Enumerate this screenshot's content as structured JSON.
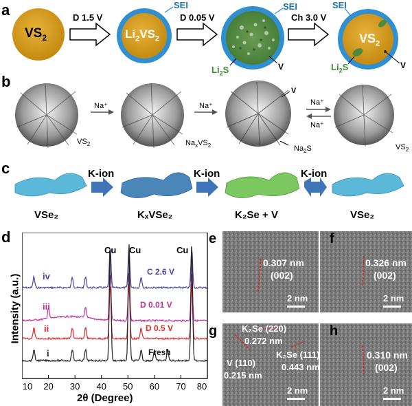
{
  "panel_a": {
    "label": "a",
    "circle1": {
      "main": "VS",
      "sub": "2"
    },
    "arrow1": "D 1.5 V",
    "circle2": {
      "pre": "Li",
      "s1": "2",
      "mid": "VS",
      "s2": "2"
    },
    "sei1": "SEI",
    "arrow2": "D 0.05 V",
    "sei2": "SEI",
    "li2s_1": {
      "main": "Li",
      "sub": "2",
      "post": "S"
    },
    "v1": "V",
    "arrow3": "Ch 3.0 V",
    "sei3": "SEI",
    "circle4": {
      "main": "VS",
      "sub": "2"
    },
    "li2s_2": {
      "main": "Li",
      "sub": "2",
      "post": "S"
    },
    "v2": "V"
  },
  "panel_b": {
    "label": "b",
    "na1": "Na⁺",
    "vs2_1": {
      "main": "VS",
      "sub": "2"
    },
    "na2": "Na⁺",
    "naxvs2": {
      "pre": "Na",
      "s1": "x",
      "mid": "VS",
      "s2": "2"
    },
    "v": "V",
    "na2s": {
      "main": "Na",
      "sub": "2",
      "post": "S"
    },
    "na3": "Na⁺",
    "na4": "Na⁺",
    "vs2_2": {
      "main": "VS",
      "sub": "2"
    }
  },
  "panel_c": {
    "label": "c",
    "arrow1": "K-ion",
    "arrow2": "K-ion",
    "arrow3": "K-ion",
    "l1": "VSe₂",
    "l2": "KₓVSe₂",
    "l3": "K₂Se + V",
    "l4": "VSe₂",
    "colors": {
      "vse2": "#5cb8d8",
      "kxvse2": "#4a86b8",
      "k2se": "#7cc860",
      "arrow": "#3f75b8"
    }
  },
  "panel_d": {
    "label": "d",
    "ylabel": "Intensity (a.u.)",
    "xlabel": "2θ (Degree)",
    "cu_labels": [
      "Cu",
      "Cu",
      "Cu"
    ],
    "roman": [
      "iv",
      "iii",
      "ii",
      "i"
    ],
    "series_labels": [
      "C 2.6 V",
      "D 0.01 V",
      "D 0.5 V",
      "Fresh"
    ],
    "series_colors": [
      "#44469c",
      "#c0309c",
      "#e02828",
      "#222222"
    ]
  },
  "chart_data": {
    "type": "line",
    "xlabel": "2θ (Degree)",
    "ylabel": "Intensity (a.u.)",
    "xlim": [
      10,
      80
    ],
    "xticks": [
      10,
      20,
      30,
      40,
      50,
      60,
      70,
      80
    ],
    "cu_peaks": [
      43.3,
      50.4,
      74.1
    ],
    "series": [
      {
        "name": "C 2.6 V",
        "peaks": [
          14.5,
          29,
          34,
          43.3,
          50.4,
          55,
          74.1
        ]
      },
      {
        "name": "D 0.01 V",
        "peaks": [
          20,
          34,
          43.3,
          50.4,
          74.1
        ]
      },
      {
        "name": "D 0.5 V",
        "peaks": [
          14.5,
          29,
          34,
          43.3,
          50.4,
          55,
          74.1
        ]
      },
      {
        "name": "Fresh",
        "peaks": [
          14.5,
          29,
          34,
          43.3,
          50.4,
          55,
          60,
          65,
          74.1
        ]
      }
    ]
  },
  "panel_e": {
    "label": "e",
    "spacing": "0.307 nm",
    "plane": "(002)",
    "scale": "2 nm"
  },
  "panel_f": {
    "label": "f",
    "spacing": "0.326 nm",
    "plane": "(002)",
    "scale": "2 nm"
  },
  "panel_g": {
    "label": "g",
    "k2se220": "K₂Se (220)",
    "d220": "0.272 nm",
    "k2se111": "K₂Se (111)",
    "d111": "0.443 nm",
    "v110": "V (110)",
    "dv": "0.215 nm",
    "scale": "2 nm"
  },
  "panel_h": {
    "label": "h",
    "spacing": "0.310 nm",
    "plane": "(002)",
    "scale": "2 nm"
  }
}
